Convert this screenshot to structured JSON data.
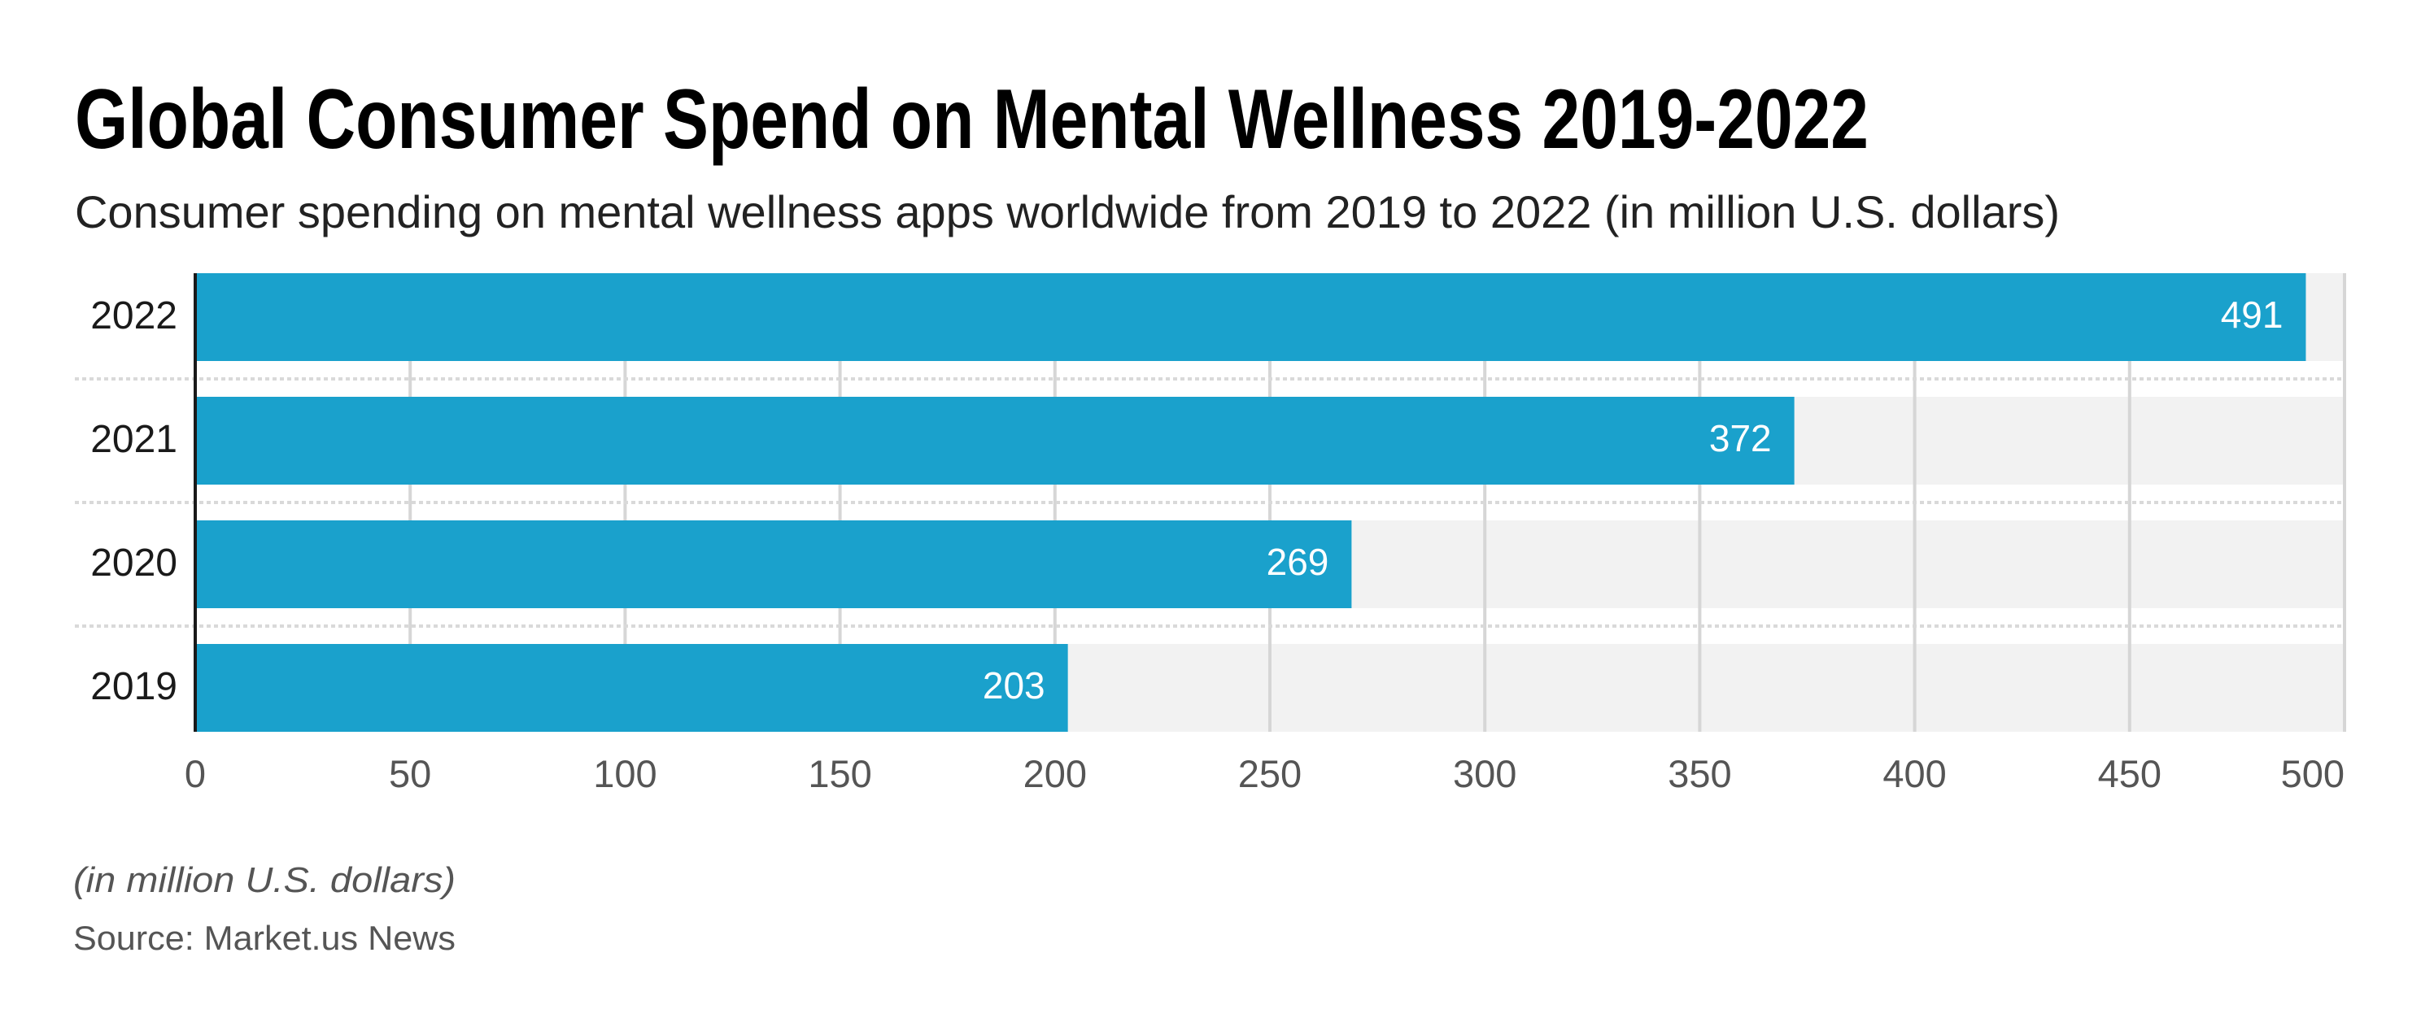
{
  "chart_data": {
    "type": "bar",
    "orientation": "horizontal",
    "title": "Global Consumer Spend on Mental Wellness 2019-2022",
    "subtitle": "Consumer spending on mental wellness apps worldwide from 2019 to 2022 (in million U.S. dollars)",
    "categories": [
      "2022",
      "2021",
      "2020",
      "2019"
    ],
    "values": [
      491,
      372,
      269,
      203
    ],
    "value_labels": [
      "491",
      "372",
      "269",
      "203"
    ],
    "xlabel": "",
    "ylabel": "",
    "xlim": [
      0,
      500
    ],
    "xticks": [
      0,
      50,
      100,
      150,
      200,
      250,
      300,
      350,
      400,
      450,
      500
    ],
    "xtick_labels": [
      "0",
      "50",
      "100",
      "150",
      "200",
      "250",
      "300",
      "350",
      "400",
      "450",
      "500"
    ],
    "grid": true,
    "legend": "none",
    "unit_note": "(in million U.S. dollars)",
    "source": "Source: Market.us News",
    "colors": {
      "bar": "#1aa1cc",
      "track": "#f2f2f2",
      "gridline": "#d6d6d6",
      "separator": "#d9d9d9",
      "axis": "#1a1a1a"
    }
  }
}
